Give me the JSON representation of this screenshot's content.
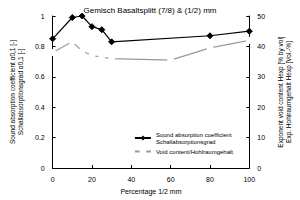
{
  "chart_data": {
    "type": "line",
    "title": "Gemisch Basaltsplitt (7/8) & (1/2) mm",
    "x_label": "Percentage 1/2 mm",
    "y_label": "Sound absorption coefficient α0,1 [-]\nSchallabsorptionsgrad α0,1 [-]",
    "y2_label": "Exponent void content Hexp [% by vol]\nExp. Hohlraumgehalt Hexp [Vol.-%]",
    "xlim": [
      0,
      100
    ],
    "xticks": [
      0,
      20,
      40,
      60,
      80,
      100
    ],
    "ylim": [
      0,
      1
    ],
    "yticks": [
      0,
      0.2,
      0.4,
      0.6,
      0.8,
      1
    ],
    "y2lim": [
      0,
      50
    ],
    "y2ticks": [
      0,
      10,
      20,
      30,
      40,
      50
    ],
    "grid": false,
    "legend": "lower right",
    "series": [
      {
        "name": "Sound absorption coefficient\nSchallabsorptionsgrad",
        "color": "#000000",
        "marker": "diamond",
        "line_style": "solid",
        "x": [
          0,
          10,
          15,
          20,
          25,
          30,
          80,
          100
        ],
        "values": [
          0.85,
          0.99,
          1.0,
          0.93,
          0.91,
          0.83,
          0.87,
          0.9
        ]
      },
      {
        "name": "Void content/Hohlraumgehalt",
        "color": "#9a9a9a",
        "marker": "emptyCircle",
        "line_style": "solid",
        "axis": "y2",
        "x": [
          0,
          10,
          15,
          20,
          25,
          30,
          60,
          80,
          100
        ],
        "values": [
          38,
          41.5,
          38.5,
          37,
          36.5,
          36,
          35.5,
          39.5,
          42
        ]
      }
    ]
  }
}
